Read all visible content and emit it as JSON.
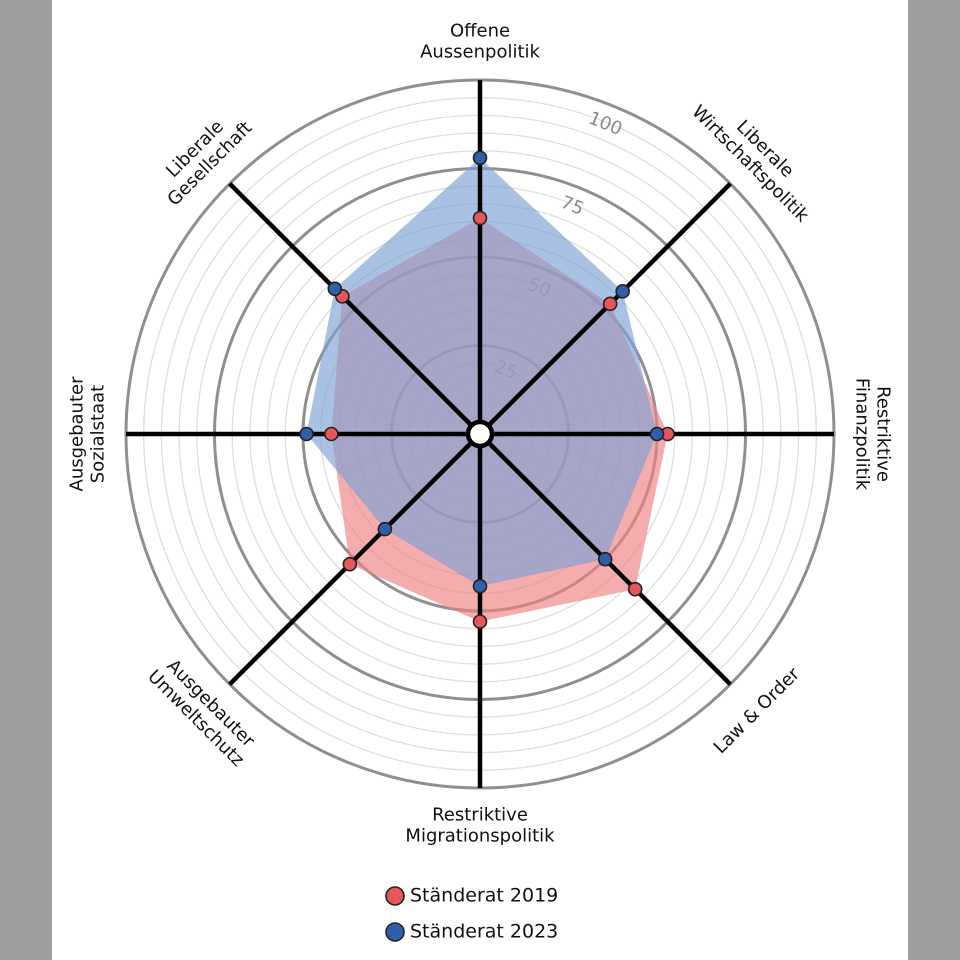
{
  "chart_data": {
    "type": "radar",
    "title": "",
    "axes": [
      [
        "Offene",
        "Aussenpolitik"
      ],
      [
        "Liberale",
        "Wirtschaftspolitik"
      ],
      [
        "Restriktive",
        "Finanzpolitik"
      ],
      [
        "Law & Order"
      ],
      [
        "Restriktive",
        "Migrationspolitik"
      ],
      [
        "Ausgebauter",
        "Umweltschutz"
      ],
      [
        "Ausgebauter",
        "Sozialstaat"
      ],
      [
        "Liberale",
        "Gesellschaft"
      ]
    ],
    "range": [
      0,
      100
    ],
    "ticks": [
      25,
      50,
      75,
      100
    ],
    "tick_labels": [
      "25",
      "50",
      "75",
      "100"
    ],
    "series": [
      {
        "name": "Ständerat 2019",
        "color": "#e8555a",
        "fill": "#f08080",
        "values": [
          61,
          52,
          53,
          62,
          53,
          52,
          42,
          55
        ]
      },
      {
        "name": "Ständerat 2023",
        "color": "#2e5fa8",
        "fill": "#7ba1d6",
        "values": [
          78,
          57,
          50,
          50,
          43,
          38,
          49,
          58
        ]
      }
    ],
    "legend": {
      "position": "bottom"
    }
  }
}
